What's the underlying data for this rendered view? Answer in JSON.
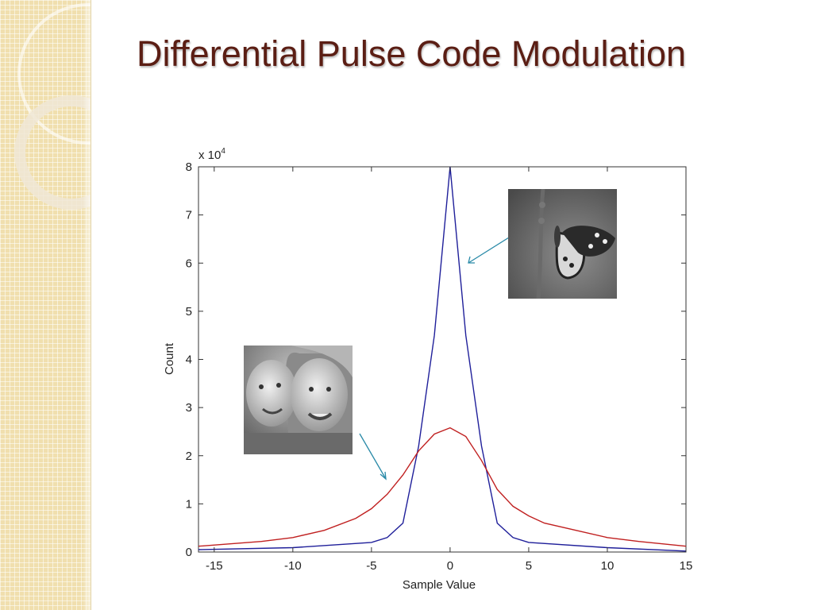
{
  "slide": {
    "title": "Differential Pulse Code Modulation"
  },
  "chart_data": {
    "type": "line",
    "xlabel": "Sample Value",
    "ylabel": "Count",
    "y_multiplier": "x 10",
    "y_multiplier_exponent": "4",
    "xlim": [
      -16,
      15
    ],
    "ylim": [
      0,
      8
    ],
    "x_ticks": [
      -15,
      -10,
      -5,
      0,
      5,
      10,
      15
    ],
    "y_ticks": [
      0,
      1,
      2,
      3,
      4,
      5,
      6,
      7,
      8
    ],
    "grid": false,
    "series": [
      {
        "color": "#1f1f9a",
        "x": [
          -16,
          -10,
          -5,
          -4,
          -3,
          -2,
          -1,
          0,
          1,
          2,
          3,
          4,
          5,
          10,
          15
        ],
        "y": [
          0.05,
          0.09,
          0.2,
          0.3,
          0.6,
          2.2,
          4.5,
          8.0,
          4.5,
          2.2,
          0.6,
          0.3,
          0.2,
          0.09,
          0.02
        ]
      },
      {
        "color": "#c02020",
        "x": [
          -16,
          -12,
          -10,
          -8,
          -6,
          -5,
          -4,
          -3,
          -2,
          -1,
          0,
          1,
          2,
          3,
          4,
          5,
          6,
          8,
          10,
          12,
          15
        ],
        "y": [
          0.12,
          0.22,
          0.3,
          0.45,
          0.7,
          0.9,
          1.2,
          1.6,
          2.1,
          2.45,
          2.58,
          2.4,
          1.9,
          1.3,
          0.95,
          0.75,
          0.6,
          0.45,
          0.3,
          0.22,
          0.12
        ]
      }
    ]
  },
  "images": {
    "kids_photo": "two-children-photo",
    "butterfly_photo": "butterfly-photo"
  },
  "colors": {
    "title": "#5b1e14",
    "sidebar": "#f0dfae",
    "arrow": "#2a8aa8"
  }
}
